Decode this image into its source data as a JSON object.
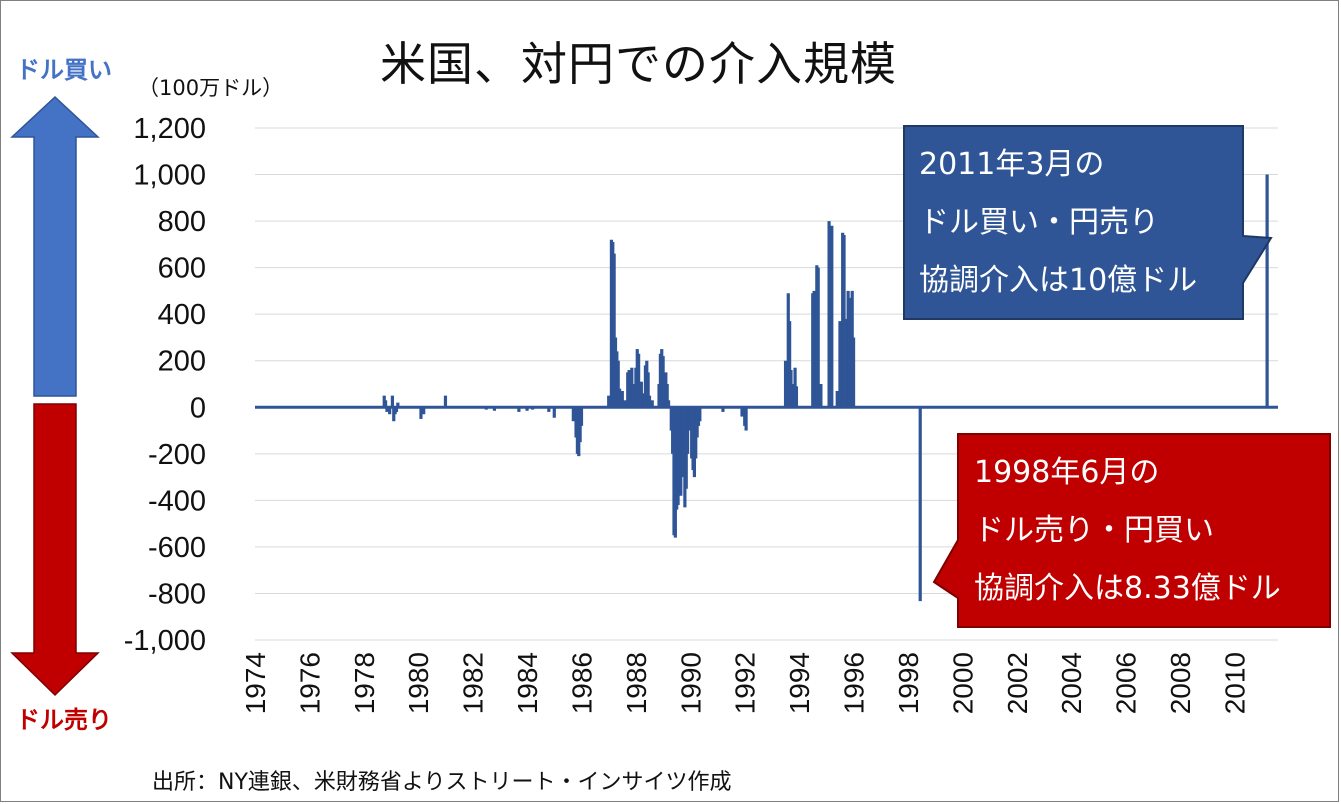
{
  "chart_data": {
    "type": "bar",
    "title": "米国、対円での介入規模",
    "unit_label": "（100万ドル）",
    "buy_label": "ドル買い",
    "sell_label": "ドル売り",
    "source": "出所：NY連銀、米財務省よりストリート・インサイツ作成",
    "ylim": [
      -1000,
      1200
    ],
    "xlim": [
      1974.0,
      2011.6
    ],
    "yticks": [
      "1,200",
      "1,000",
      "800",
      "600",
      "400",
      "200",
      "0",
      "-200",
      "-400",
      "-600",
      "-800",
      "-1,000"
    ],
    "ytick_values": [
      1200,
      1000,
      800,
      600,
      400,
      200,
      0,
      -200,
      -400,
      -600,
      -800,
      -1000
    ],
    "xticks": [
      "1974",
      "1976",
      "1978",
      "1980",
      "1982",
      "1984",
      "1986",
      "1988",
      "1990",
      "1992",
      "1994",
      "1996",
      "1998",
      "2000",
      "2002",
      "2004",
      "2006",
      "2008",
      "2010"
    ],
    "grid": true,
    "series": [
      {
        "color": "#2f5597",
        "points": [
          [
            1978.75,
            50
          ],
          [
            1978.8,
            30
          ],
          [
            1978.85,
            -20
          ],
          [
            1978.95,
            -30
          ],
          [
            1979.05,
            50
          ],
          [
            1979.1,
            -60
          ],
          [
            1979.15,
            -30
          ],
          [
            1979.2,
            -20
          ],
          [
            1979.25,
            20
          ],
          [
            1980.1,
            -50
          ],
          [
            1980.2,
            -30
          ],
          [
            1981.0,
            50
          ],
          [
            1982.5,
            -10
          ],
          [
            1982.8,
            -15
          ],
          [
            1983.7,
            -20
          ],
          [
            1984.0,
            -15
          ],
          [
            1984.2,
            -10
          ],
          [
            1984.8,
            -20
          ],
          [
            1985.0,
            -45
          ],
          [
            1985.7,
            -60
          ],
          [
            1985.8,
            -130
          ],
          [
            1985.85,
            -200
          ],
          [
            1985.9,
            -210
          ],
          [
            1985.95,
            -150
          ],
          [
            1986.0,
            -80
          ],
          [
            1987.0,
            50
          ],
          [
            1987.1,
            720
          ],
          [
            1987.15,
            710
          ],
          [
            1987.2,
            660
          ],
          [
            1987.25,
            300
          ],
          [
            1987.3,
            240
          ],
          [
            1987.35,
            200
          ],
          [
            1987.4,
            80
          ],
          [
            1987.5,
            70
          ],
          [
            1987.6,
            30
          ],
          [
            1987.7,
            150
          ],
          [
            1987.75,
            160
          ],
          [
            1987.85,
            170
          ],
          [
            1987.9,
            100
          ],
          [
            1988.0,
            170
          ],
          [
            1988.05,
            250
          ],
          [
            1988.1,
            230
          ],
          [
            1988.2,
            110
          ],
          [
            1988.3,
            60
          ],
          [
            1988.35,
            180
          ],
          [
            1988.4,
            200
          ],
          [
            1988.45,
            150
          ],
          [
            1988.5,
            50
          ],
          [
            1988.6,
            30
          ],
          [
            1988.85,
            100
          ],
          [
            1988.9,
            230
          ],
          [
            1988.95,
            250
          ],
          [
            1989.0,
            220
          ],
          [
            1989.1,
            150
          ],
          [
            1989.15,
            100
          ],
          [
            1989.2,
            30
          ],
          [
            1989.3,
            -100
          ],
          [
            1989.35,
            -200
          ],
          [
            1989.4,
            -550
          ],
          [
            1989.45,
            -560
          ],
          [
            1989.5,
            -440
          ],
          [
            1989.55,
            -420
          ],
          [
            1989.6,
            -300
          ],
          [
            1989.65,
            -380
          ],
          [
            1989.7,
            -280
          ],
          [
            1989.75,
            -300
          ],
          [
            1989.8,
            -430
          ],
          [
            1989.85,
            -350
          ],
          [
            1989.9,
            -200
          ],
          [
            1989.95,
            -100
          ],
          [
            1990.0,
            -90
          ],
          [
            1990.05,
            -220
          ],
          [
            1990.1,
            -270
          ],
          [
            1990.15,
            -300
          ],
          [
            1990.2,
            -220
          ],
          [
            1990.25,
            -130
          ],
          [
            1990.3,
            -80
          ],
          [
            1990.35,
            -60
          ],
          [
            1991.2,
            -20
          ],
          [
            1991.9,
            -40
          ],
          [
            1992.0,
            -80
          ],
          [
            1992.05,
            -100
          ],
          [
            1993.5,
            200
          ],
          [
            1993.55,
            110
          ],
          [
            1993.6,
            490
          ],
          [
            1993.65,
            370
          ],
          [
            1993.7,
            160
          ],
          [
            1993.75,
            100
          ],
          [
            1993.85,
            170
          ],
          [
            1993.9,
            90
          ],
          [
            1994.5,
            490
          ],
          [
            1994.55,
            500
          ],
          [
            1994.65,
            610
          ],
          [
            1994.7,
            600
          ],
          [
            1994.8,
            100
          ],
          [
            1995.1,
            800
          ],
          [
            1995.2,
            780
          ],
          [
            1995.4,
            70
          ],
          [
            1995.5,
            370
          ],
          [
            1995.6,
            750
          ],
          [
            1995.65,
            740
          ],
          [
            1995.7,
            380
          ],
          [
            1995.8,
            500
          ],
          [
            1995.85,
            470
          ],
          [
            1995.95,
            500
          ],
          [
            1996.0,
            300
          ],
          [
            1998.45,
            -833
          ],
          [
            2011.2,
            1000
          ]
        ]
      }
    ],
    "annotations": [
      {
        "lines": [
          "2011年3月の",
          "ドル買い・円売り",
          "協調介入は10億ドル"
        ],
        "color": "#2f5597"
      },
      {
        "lines": [
          "1998年6月の",
          "ドル売り・円買い",
          "協調介入は8.33億ドル"
        ],
        "color": "#c00000"
      }
    ],
    "arrow_colors": {
      "buy": "#4472c4",
      "sell": "#c00000"
    }
  }
}
